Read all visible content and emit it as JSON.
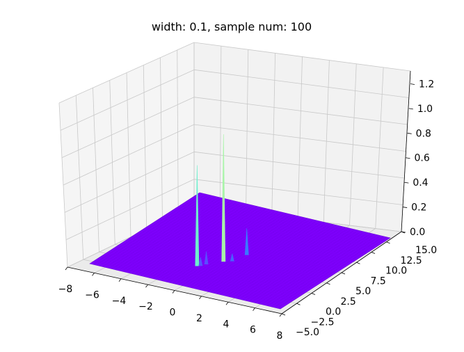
{
  "chart_data": {
    "type": "surface3d",
    "title": "width: 0.1, sample num: 100",
    "xlim": [
      -8,
      8
    ],
    "ylim": [
      -5,
      15
    ],
    "zlim": [
      0,
      1.3
    ],
    "x_ticks": [
      "−8",
      "−6",
      "−4",
      "−2",
      "0",
      "2",
      "4",
      "6",
      "8"
    ],
    "y_ticks": [
      "−5.0",
      "−2.5",
      "0.0",
      "2.5",
      "5.0",
      "7.5",
      "10.0",
      "12.5",
      "15.0"
    ],
    "z_ticks": [
      "0.0",
      "0.2",
      "0.4",
      "0.6",
      "0.8",
      "1.0",
      "1.2"
    ],
    "surface": {
      "x_range": [
        -8,
        8
      ],
      "y_range": [
        -5,
        15
      ],
      "base_z": 0.0,
      "base_color": "#8000ff"
    },
    "spikes": [
      {
        "x": -1.2,
        "y": -0.2,
        "z": 0.95,
        "color": "#6ef0ce"
      },
      {
        "x": 0.0,
        "y": 2.0,
        "z": 1.2,
        "color": "#a8f5a8"
      },
      {
        "x": 0.8,
        "y": 4.5,
        "z": 0.25,
        "color": "#3a78ff"
      },
      {
        "x": -0.8,
        "y": 0.6,
        "z": 0.12,
        "color": "#5b4dff"
      },
      {
        "x": 0.5,
        "y": 2.5,
        "z": 0.07,
        "color": "#4a60ff"
      },
      {
        "x": -1.0,
        "y": 0.0,
        "z": 0.08,
        "color": "#5a50ff"
      }
    ],
    "grid": true,
    "pane_color": "#f2f2f2",
    "grid_color": "#c8c8c8"
  }
}
